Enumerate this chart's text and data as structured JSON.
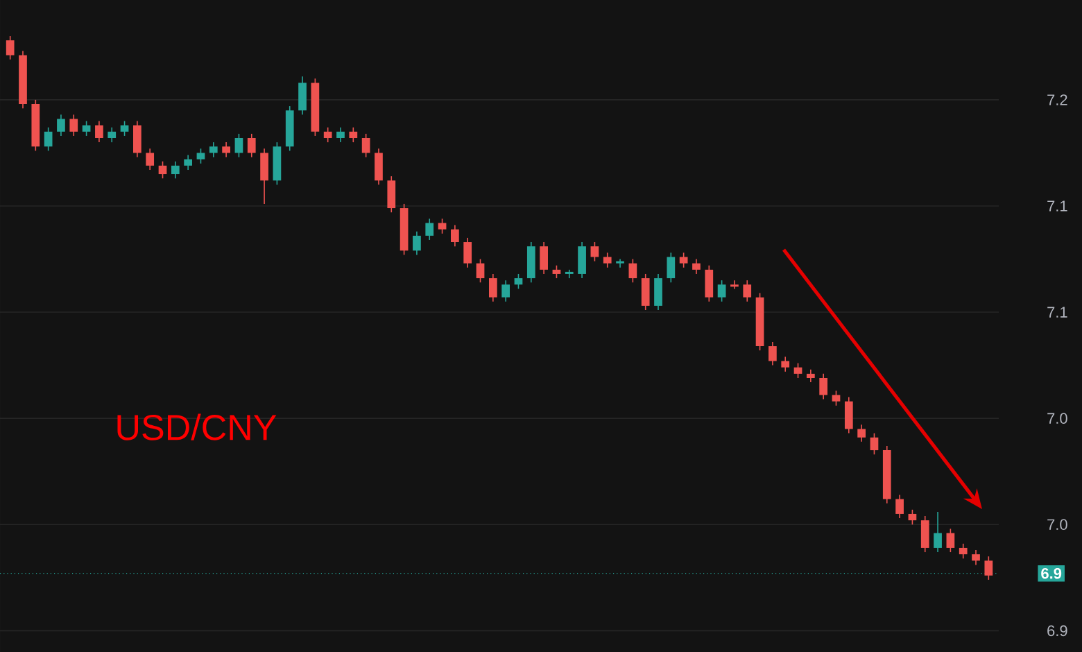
{
  "chart_data": {
    "type": "candlestick",
    "categories": [
      null,
      null,
      null,
      null,
      null,
      null,
      null,
      null,
      null,
      null,
      null,
      null,
      null,
      null,
      null,
      null,
      null,
      null,
      null,
      null,
      null,
      null,
      null,
      null,
      null,
      null,
      null,
      null,
      null,
      null,
      null,
      null,
      null,
      null,
      null,
      null,
      null,
      null,
      null,
      null,
      null,
      null,
      null,
      null,
      null,
      null,
      null,
      null,
      null,
      null,
      null,
      null,
      null,
      null,
      null,
      null,
      null,
      null,
      null,
      null,
      null,
      null,
      null,
      null,
      null,
      null,
      null,
      null,
      null,
      null,
      null,
      null,
      null,
      null,
      null,
      null,
      null,
      null
    ],
    "ohlc": [
      [
        7.228,
        7.23,
        7.219,
        7.221
      ],
      [
        7.221,
        7.223,
        7.196,
        7.198
      ],
      [
        7.198,
        7.2,
        7.176,
        7.178
      ],
      [
        7.178,
        7.187,
        7.176,
        7.185
      ],
      [
        7.185,
        7.193,
        7.183,
        7.191
      ],
      [
        7.191,
        7.193,
        7.183,
        7.185
      ],
      [
        7.185,
        7.19,
        7.183,
        7.188
      ],
      [
        7.188,
        7.19,
        7.18,
        7.182
      ],
      [
        7.182,
        7.187,
        7.18,
        7.185
      ],
      [
        7.185,
        7.19,
        7.183,
        7.188
      ],
      [
        7.188,
        7.19,
        7.173,
        7.175
      ],
      [
        7.175,
        7.177,
        7.167,
        7.169
      ],
      [
        7.169,
        7.171,
        7.163,
        7.165
      ],
      [
        7.165,
        7.171,
        7.163,
        7.169
      ],
      [
        7.169,
        7.174,
        7.167,
        7.172
      ],
      [
        7.172,
        7.177,
        7.17,
        7.175
      ],
      [
        7.175,
        7.18,
        7.173,
        7.178
      ],
      [
        7.178,
        7.18,
        7.173,
        7.175
      ],
      [
        7.175,
        7.184,
        7.173,
        7.182
      ],
      [
        7.182,
        7.184,
        7.173,
        7.175
      ],
      [
        7.175,
        7.177,
        7.151,
        7.162
      ],
      [
        7.162,
        7.18,
        7.16,
        7.178
      ],
      [
        7.178,
        7.197,
        7.176,
        7.195
      ],
      [
        7.195,
        7.211,
        7.193,
        7.208
      ],
      [
        7.208,
        7.21,
        7.183,
        7.185
      ],
      [
        7.185,
        7.187,
        7.18,
        7.182
      ],
      [
        7.182,
        7.187,
        7.18,
        7.185
      ],
      [
        7.185,
        7.187,
        7.18,
        7.182
      ],
      [
        7.182,
        7.184,
        7.173,
        7.175
      ],
      [
        7.175,
        7.177,
        7.16,
        7.162
      ],
      [
        7.162,
        7.164,
        7.147,
        7.149
      ],
      [
        7.149,
        7.151,
        7.127,
        7.129
      ],
      [
        7.129,
        7.138,
        7.127,
        7.136
      ],
      [
        7.136,
        7.144,
        7.134,
        7.142
      ],
      [
        7.142,
        7.144,
        7.137,
        7.139
      ],
      [
        7.139,
        7.141,
        7.131,
        7.133
      ],
      [
        7.133,
        7.135,
        7.121,
        7.123
      ],
      [
        7.123,
        7.125,
        7.114,
        7.116
      ],
      [
        7.116,
        7.118,
        7.105,
        7.107
      ],
      [
        7.107,
        7.115,
        7.105,
        7.113
      ],
      [
        7.113,
        7.118,
        7.111,
        7.116
      ],
      [
        7.116,
        7.133,
        7.114,
        7.131
      ],
      [
        7.131,
        7.133,
        7.118,
        7.12
      ],
      [
        7.12,
        7.122,
        7.116,
        7.118
      ],
      [
        7.118,
        7.12,
        7.116,
        7.119
      ],
      [
        7.118,
        7.133,
        7.116,
        7.131
      ],
      [
        7.131,
        7.133,
        7.124,
        7.126
      ],
      [
        7.126,
        7.128,
        7.121,
        7.123
      ],
      [
        7.123,
        7.125,
        7.121,
        7.124
      ],
      [
        7.123,
        7.125,
        7.114,
        7.116
      ],
      [
        7.116,
        7.118,
        7.101,
        7.103
      ],
      [
        7.103,
        7.118,
        7.101,
        7.116
      ],
      [
        7.116,
        7.128,
        7.114,
        7.126
      ],
      [
        7.126,
        7.128,
        7.121,
        7.123
      ],
      [
        7.123,
        7.125,
        7.118,
        7.12
      ],
      [
        7.12,
        7.122,
        7.105,
        7.107
      ],
      [
        7.107,
        7.115,
        7.105,
        7.113
      ],
      [
        7.113,
        7.115,
        7.111,
        7.112
      ],
      [
        7.113,
        7.115,
        7.105,
        7.107
      ],
      [
        7.107,
        7.109,
        7.082,
        7.084
      ],
      [
        7.084,
        7.086,
        7.075,
        7.077
      ],
      [
        7.077,
        7.079,
        7.072,
        7.074
      ],
      [
        7.074,
        7.076,
        7.069,
        7.071
      ],
      [
        7.071,
        7.073,
        7.067,
        7.069
      ],
      [
        7.069,
        7.071,
        7.059,
        7.061
      ],
      [
        7.061,
        7.063,
        7.056,
        7.058
      ],
      [
        7.058,
        7.06,
        7.043,
        7.045
      ],
      [
        7.045,
        7.047,
        7.039,
        7.041
      ],
      [
        7.041,
        7.043,
        7.033,
        7.035
      ],
      [
        7.035,
        7.037,
        7.01,
        7.012
      ],
      [
        7.012,
        7.014,
        7.003,
        7.005
      ],
      [
        7.005,
        7.007,
        7.0,
        7.002
      ],
      [
        7.002,
        7.004,
        6.987,
        6.989
      ],
      [
        6.989,
        7.006,
        6.987,
        6.996
      ],
      [
        6.996,
        6.998,
        6.987,
        6.989
      ],
      [
        6.989,
        6.991,
        6.984,
        6.986
      ],
      [
        6.986,
        6.988,
        6.981,
        6.983
      ],
      [
        6.983,
        6.985,
        6.974,
        6.976
      ]
    ],
    "ylim": [
      6.94,
      7.247
    ],
    "yticks": [
      {
        "value": 7.2,
        "label": "7.2"
      },
      {
        "value": 7.15,
        "label": "7.1"
      },
      {
        "value": 7.1,
        "label": "7.1"
      },
      {
        "value": 7.05,
        "label": "7.0"
      },
      {
        "value": 7.0,
        "label": "7.0"
      },
      {
        "value": 6.95,
        "label": "6.9"
      }
    ],
    "tick_labels": "y",
    "grid": "y",
    "ref_lines": [
      {
        "axis": "y",
        "value": 6.977,
        "color": "#26a69a",
        "line_style": "dotted"
      }
    ],
    "annotations": [
      "USD/CNY",
      "6.9"
    ]
  }
}
